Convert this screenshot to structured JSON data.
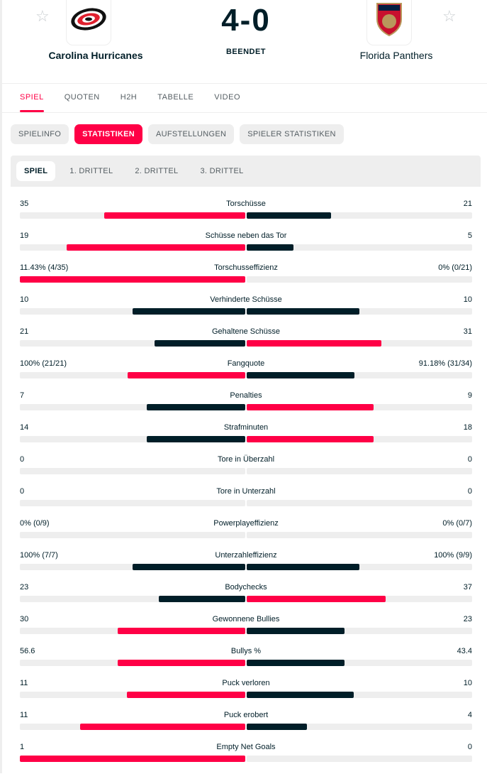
{
  "header": {
    "home": {
      "name": "Carolina Hurricanes"
    },
    "away": {
      "name": "Florida Panthers"
    },
    "score": "4-0",
    "status": "BEENDET"
  },
  "tabs": [
    "SPIEL",
    "QUOTEN",
    "H2H",
    "TABELLE",
    "VIDEO"
  ],
  "pills": [
    "SPIELINFO",
    "STATISTIKEN",
    "AUFSTELLUNGEN",
    "SPIELER STATISTIKEN"
  ],
  "subtabs": [
    "SPIEL",
    "1. DRITTEL",
    "2. DRITTEL",
    "3. DRITTEL"
  ],
  "colors": {
    "accent": "#ff0046",
    "dark": "#001e28",
    "track": "#eeeeee"
  },
  "stats": [
    {
      "name": "Torschüsse",
      "home": "35",
      "away": "21",
      "hv": 35,
      "av": 21
    },
    {
      "name": "Schüsse neben das Tor",
      "home": "19",
      "away": "5",
      "hv": 19,
      "av": 5
    },
    {
      "name": "Torschusseffizienz",
      "home": "11.43% (4/35)",
      "away": "0% (0/21)",
      "hv": 11.43,
      "av": 0
    },
    {
      "name": "Verhinderte Schüsse",
      "home": "10",
      "away": "10",
      "hv": 10,
      "av": 10
    },
    {
      "name": "Gehaltene Schüsse",
      "home": "21",
      "away": "31",
      "hv": 21,
      "av": 31
    },
    {
      "name": "Fangquote",
      "home": "100% (21/21)",
      "away": "91.18% (31/34)",
      "hv": 100,
      "av": 91.18
    },
    {
      "name": "Penalties",
      "home": "7",
      "away": "9",
      "hv": 7,
      "av": 9
    },
    {
      "name": "Strafminuten",
      "home": "14",
      "away": "18",
      "hv": 14,
      "av": 18
    },
    {
      "name": "Tore in Überzahl",
      "home": "0",
      "away": "0",
      "hv": 0,
      "av": 0
    },
    {
      "name": "Tore in Unterzahl",
      "home": "0",
      "away": "0",
      "hv": 0,
      "av": 0
    },
    {
      "name": "Powerplayeffizienz",
      "home": "0% (0/9)",
      "away": "0% (0/7)",
      "hv": 0,
      "av": 0
    },
    {
      "name": "Unterzahleffizienz",
      "home": "100% (7/7)",
      "away": "100% (9/9)",
      "hv": 100,
      "av": 100
    },
    {
      "name": "Bodychecks",
      "home": "23",
      "away": "37",
      "hv": 23,
      "av": 37
    },
    {
      "name": "Gewonnene Bullies",
      "home": "30",
      "away": "23",
      "hv": 30,
      "av": 23
    },
    {
      "name": "Bullys %",
      "home": "56.6",
      "away": "43.4",
      "hv": 56.6,
      "av": 43.4
    },
    {
      "name": "Puck verloren",
      "home": "11",
      "away": "10",
      "hv": 11,
      "av": 10
    },
    {
      "name": "Puck erobert",
      "home": "11",
      "away": "4",
      "hv": 11,
      "av": 4
    },
    {
      "name": "Empty Net Goals",
      "home": "1",
      "away": "0",
      "hv": 1,
      "av": 0
    }
  ]
}
